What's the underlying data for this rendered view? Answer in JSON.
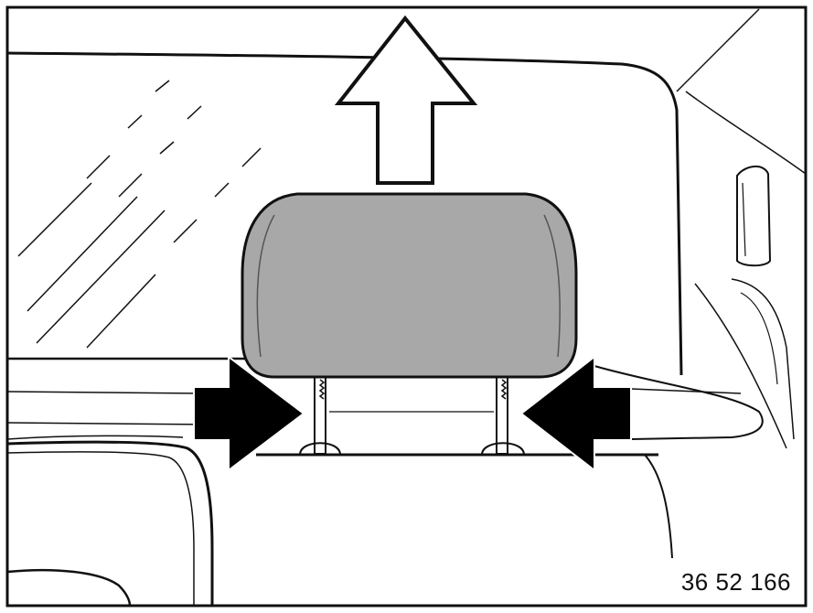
{
  "figure_number": "36 52 166",
  "colors": {
    "line": "#111111",
    "headrest_fill": "#a8a8a8",
    "arrow_fill": "#000000",
    "background": "#ffffff"
  },
  "icons": {
    "lift_arrow": "arrow-up-outline-icon",
    "press_arrows": "arrow-solid-inward-icon"
  }
}
